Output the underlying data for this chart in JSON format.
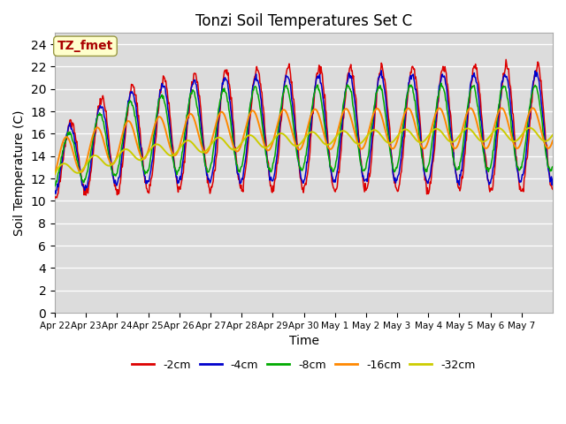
{
  "title": "Tonzi Soil Temperatures Set C",
  "xlabel": "Time",
  "ylabel": "Soil Temperature (C)",
  "ylim": [
    0,
    25
  ],
  "yticks": [
    0,
    2,
    4,
    6,
    8,
    10,
    12,
    14,
    16,
    18,
    20,
    22,
    24
  ],
  "plot_bg": "#dcdcdc",
  "series": [
    {
      "label": "-2cm",
      "color": "#dd0000"
    },
    {
      "label": "-4cm",
      "color": "#0000cc"
    },
    {
      "label": "-8cm",
      "color": "#00aa00"
    },
    {
      "label": "-16cm",
      "color": "#ff8800"
    },
    {
      "label": "-32cm",
      "color": "#cccc00"
    }
  ],
  "xtick_labels": [
    "Apr 22",
    "Apr 23",
    "Apr 24",
    "Apr 25",
    "Apr 26",
    "Apr 27",
    "Apr 28",
    "Apr 29",
    "Apr 30",
    "May 1",
    "May 2",
    "May 3",
    "May 4",
    "May 5",
    "May 6",
    "May 7"
  ],
  "annotation_text": "TZ_fmet",
  "annotation_color": "#aa0000",
  "annotation_bg": "#ffffcc",
  "annotation_border": "#999944"
}
